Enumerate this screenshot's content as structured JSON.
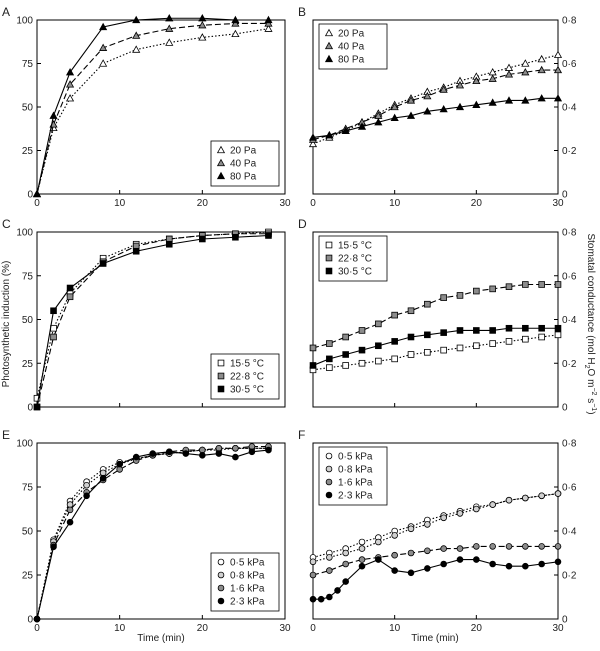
{
  "figure": {
    "xlabel": "Time (min)",
    "left_ylabel": "Photosynthetic induction (%)",
    "right_ylabel_parts": [
      "Stomatal conductance (mol H",
      "2",
      "O m",
      "−2",
      " s",
      "−1",
      ")"
    ]
  },
  "chart_data": [
    {
      "panel": "A",
      "type": "line",
      "xlim": [
        0,
        30
      ],
      "ylim": [
        0,
        100
      ],
      "xticks": [
        "0",
        "10",
        "20",
        "30"
      ],
      "yticks": [
        "0",
        "25",
        "50",
        "75",
        "100"
      ],
      "legend_position": "lower-right",
      "series": [
        {
          "name": "20 Pa",
          "marker": "triangle-open",
          "line": "dotted",
          "x": [
            0,
            2,
            4,
            8,
            12,
            16,
            20,
            24,
            28
          ],
          "y": [
            0,
            38,
            55,
            75,
            83,
            87,
            90,
            92,
            95
          ]
        },
        {
          "name": "40 Pa",
          "marker": "triangle-gray",
          "line": "dashed",
          "x": [
            0,
            2,
            4,
            8,
            12,
            16,
            20,
            24,
            28
          ],
          "y": [
            0,
            40,
            63,
            84,
            91,
            95,
            97,
            98,
            98
          ]
        },
        {
          "name": "80 Pa",
          "marker": "triangle-black",
          "line": "solid",
          "x": [
            0,
            2,
            4,
            8,
            12,
            16,
            20,
            24,
            28
          ],
          "y": [
            0,
            45,
            70,
            96,
            100,
            101,
            101,
            100,
            100
          ]
        }
      ]
    },
    {
      "panel": "B",
      "type": "line",
      "xlim": [
        0,
        30
      ],
      "ylim": [
        0,
        0.8
      ],
      "xticks": [
        "0",
        "10",
        "20",
        "30"
      ],
      "yticks": [
        "0",
        "0·2",
        "0·4",
        "0·6",
        "0·8"
      ],
      "legend_position": "top-left",
      "series": [
        {
          "name": "20 Pa",
          "marker": "triangle-open",
          "line": "dotted",
          "x": [
            0,
            2,
            4,
            6,
            8,
            10,
            12,
            14,
            16,
            18,
            20,
            22,
            24,
            26,
            28,
            30
          ],
          "y": [
            0.23,
            0.26,
            0.29,
            0.33,
            0.37,
            0.41,
            0.44,
            0.47,
            0.49,
            0.52,
            0.54,
            0.56,
            0.58,
            0.6,
            0.62,
            0.64
          ]
        },
        {
          "name": "40 Pa",
          "marker": "triangle-gray",
          "line": "dashed",
          "x": [
            0,
            2,
            4,
            6,
            8,
            10,
            12,
            14,
            16,
            18,
            20,
            22,
            24,
            26,
            28,
            30
          ],
          "y": [
            0.25,
            0.27,
            0.3,
            0.33,
            0.36,
            0.4,
            0.43,
            0.45,
            0.48,
            0.5,
            0.52,
            0.53,
            0.55,
            0.56,
            0.57,
            0.57
          ]
        },
        {
          "name": "80 Pa",
          "marker": "triangle-black",
          "line": "solid",
          "x": [
            0,
            2,
            4,
            6,
            8,
            10,
            12,
            14,
            16,
            18,
            20,
            22,
            24,
            26,
            28,
            30
          ],
          "y": [
            0.26,
            0.27,
            0.29,
            0.31,
            0.33,
            0.35,
            0.36,
            0.38,
            0.39,
            0.4,
            0.41,
            0.42,
            0.43,
            0.43,
            0.44,
            0.44
          ]
        }
      ]
    },
    {
      "panel": "C",
      "type": "line",
      "xlim": [
        0,
        30
      ],
      "ylim": [
        0,
        100
      ],
      "xticks": [],
      "yticks": [
        "0",
        "25",
        "50",
        "75",
        "100"
      ],
      "legend_position": "lower-right",
      "series": [
        {
          "name": "15·5 °C",
          "marker": "square-open",
          "line": "dotted",
          "x": [
            0,
            2,
            4,
            8,
            12,
            16,
            20,
            24,
            28
          ],
          "y": [
            5,
            45,
            65,
            85,
            93,
            96,
            98,
            99,
            100
          ]
        },
        {
          "name": "22·8 °C",
          "marker": "square-gray",
          "line": "dashed",
          "x": [
            0,
            2,
            4,
            8,
            12,
            16,
            20,
            24,
            28
          ],
          "y": [
            0,
            40,
            63,
            83,
            92,
            96,
            98,
            99,
            99
          ]
        },
        {
          "name": "30·5 °C",
          "marker": "square-black",
          "line": "solid",
          "x": [
            0,
            2,
            4,
            8,
            12,
            16,
            20,
            24,
            28
          ],
          "y": [
            0,
            55,
            68,
            82,
            89,
            93,
            96,
            97,
            98
          ]
        }
      ]
    },
    {
      "panel": "D",
      "type": "line",
      "xlim": [
        0,
        30
      ],
      "ylim": [
        0,
        0.8
      ],
      "xticks": [],
      "yticks": [
        "0",
        "0·2",
        "0·4",
        "0·6",
        "0·8"
      ],
      "legend_position": "top-left",
      "series": [
        {
          "name": "15·5 °C",
          "marker": "square-open",
          "line": "dotted",
          "x": [
            0,
            2,
            4,
            6,
            8,
            10,
            12,
            14,
            16,
            18,
            20,
            22,
            24,
            26,
            28,
            30
          ],
          "y": [
            0.17,
            0.18,
            0.19,
            0.2,
            0.21,
            0.22,
            0.24,
            0.25,
            0.26,
            0.27,
            0.28,
            0.29,
            0.3,
            0.31,
            0.32,
            0.33
          ]
        },
        {
          "name": "22·8 °C",
          "marker": "square-gray",
          "line": "dashed",
          "x": [
            0,
            2,
            4,
            6,
            8,
            10,
            12,
            14,
            16,
            18,
            20,
            22,
            24,
            26,
            28,
            30
          ],
          "y": [
            0.27,
            0.29,
            0.32,
            0.35,
            0.38,
            0.42,
            0.44,
            0.47,
            0.5,
            0.51,
            0.53,
            0.54,
            0.55,
            0.56,
            0.56,
            0.56
          ]
        },
        {
          "name": "30·5 °C",
          "marker": "square-black",
          "line": "solid",
          "x": [
            0,
            2,
            4,
            6,
            8,
            10,
            12,
            14,
            16,
            18,
            20,
            22,
            24,
            26,
            28,
            30
          ],
          "y": [
            0.19,
            0.22,
            0.24,
            0.26,
            0.28,
            0.3,
            0.32,
            0.33,
            0.34,
            0.35,
            0.35,
            0.35,
            0.36,
            0.36,
            0.36,
            0.36
          ]
        }
      ]
    },
    {
      "panel": "E",
      "type": "line",
      "xlim": [
        0,
        30
      ],
      "ylim": [
        0,
        100
      ],
      "xticks": [
        "0",
        "10",
        "20",
        "30"
      ],
      "yticks": [
        "0",
        "25",
        "50",
        "75",
        "100"
      ],
      "legend_position": "lower-right",
      "series": [
        {
          "name": "0·5 kPa",
          "marker": "circle-open",
          "line": "dotted",
          "x": [
            0,
            2,
            4,
            6,
            8,
            10,
            12,
            14,
            16,
            18,
            20,
            22,
            24,
            26,
            28
          ],
          "y": [
            0,
            45,
            67,
            78,
            85,
            89,
            91,
            93,
            94,
            95,
            96,
            97,
            97,
            97,
            97
          ]
        },
        {
          "name": "0·8 kPa",
          "marker": "circle-lightgray",
          "line": "dotted",
          "x": [
            0,
            2,
            4,
            6,
            8,
            10,
            12,
            14,
            16,
            18,
            20,
            22,
            24,
            26,
            28
          ],
          "y": [
            0,
            44,
            65,
            76,
            83,
            88,
            91,
            93,
            94,
            95,
            96,
            96,
            97,
            97,
            97
          ]
        },
        {
          "name": "1·6 kPa",
          "marker": "circle-gray",
          "line": "dashed",
          "x": [
            0,
            2,
            4,
            6,
            8,
            10,
            12,
            14,
            16,
            18,
            20,
            22,
            24,
            26,
            28
          ],
          "y": [
            0,
            42,
            62,
            72,
            79,
            85,
            90,
            93,
            95,
            96,
            96,
            97,
            97,
            98,
            98
          ]
        },
        {
          "name": "2·3 kPa",
          "marker": "circle-black",
          "line": "solid",
          "x": [
            0,
            2,
            4,
            6,
            8,
            10,
            12,
            14,
            16,
            18,
            20,
            22,
            24,
            26,
            28
          ],
          "y": [
            0,
            41,
            55,
            70,
            80,
            88,
            92,
            94,
            95,
            94,
            93,
            94,
            92,
            95,
            96
          ]
        }
      ]
    },
    {
      "panel": "F",
      "type": "line",
      "xlim": [
        0,
        30
      ],
      "ylim": [
        0,
        0.8
      ],
      "xticks": [
        "0",
        "10",
        "20",
        "30"
      ],
      "yticks": [
        "0",
        "0·2",
        "0·4",
        "0·6",
        "0·8"
      ],
      "legend_position": "top-left",
      "series": [
        {
          "name": "0·5 kPa",
          "marker": "circle-open",
          "line": "dotted",
          "x": [
            0,
            2,
            4,
            6,
            8,
            10,
            12,
            14,
            16,
            18,
            20,
            22,
            24,
            26,
            28,
            30
          ],
          "y": [
            0.28,
            0.3,
            0.32,
            0.35,
            0.37,
            0.4,
            0.42,
            0.45,
            0.47,
            0.49,
            0.51,
            0.52,
            0.54,
            0.55,
            0.56,
            0.57
          ]
        },
        {
          "name": "0·8 kPa",
          "marker": "circle-lightgray",
          "line": "dotted",
          "x": [
            0,
            2,
            4,
            6,
            8,
            10,
            12,
            14,
            16,
            18,
            20,
            22,
            24,
            26,
            28,
            30
          ],
          "y": [
            0.26,
            0.28,
            0.3,
            0.32,
            0.35,
            0.38,
            0.41,
            0.43,
            0.46,
            0.48,
            0.5,
            0.52,
            0.54,
            0.55,
            0.56,
            0.57
          ]
        },
        {
          "name": "1·6 kPa",
          "marker": "circle-gray",
          "line": "dashed",
          "x": [
            0,
            2,
            4,
            6,
            8,
            10,
            12,
            14,
            16,
            18,
            20,
            22,
            24,
            26,
            28,
            30
          ],
          "y": [
            0.2,
            0.22,
            0.25,
            0.27,
            0.28,
            0.29,
            0.3,
            0.31,
            0.32,
            0.32,
            0.33,
            0.33,
            0.33,
            0.33,
            0.33,
            0.33
          ]
        },
        {
          "name": "2·3 kPa",
          "marker": "circle-black",
          "line": "solid",
          "x": [
            0,
            1,
            2,
            3,
            4,
            6,
            8,
            10,
            12,
            14,
            16,
            18,
            20,
            22,
            24,
            26,
            28,
            30
          ],
          "y": [
            0.09,
            0.09,
            0.1,
            0.13,
            0.17,
            0.24,
            0.27,
            0.22,
            0.21,
            0.23,
            0.25,
            0.27,
            0.27,
            0.25,
            0.24,
            0.24,
            0.25,
            0.26
          ]
        }
      ]
    }
  ]
}
